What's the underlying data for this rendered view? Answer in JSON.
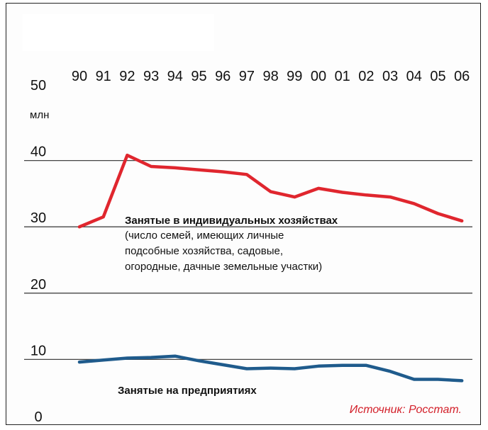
{
  "chart_data": {
    "type": "line",
    "categories": [
      "90",
      "91",
      "92",
      "93",
      "94",
      "95",
      "96",
      "97",
      "98",
      "99",
      "00",
      "01",
      "02",
      "03",
      "04",
      "05",
      "06"
    ],
    "ylim": [
      0,
      50
    ],
    "yticks": [
      "0",
      "10",
      "20",
      "30",
      "40",
      "50"
    ],
    "unit_label": "млн",
    "grid": true,
    "series": [
      {
        "name": "Занятые в индивидуальных хозяйствах",
        "color": "#e0262e",
        "values": [
          30,
          31.5,
          40.8,
          39.1,
          38.9,
          38.6,
          38.3,
          37.9,
          35.3,
          34.5,
          35.8,
          35.2,
          34.8,
          34.5,
          33.5,
          32.0,
          30.9
        ]
      },
      {
        "name": "Занятые на предприятиях",
        "color": "#1f5b8c",
        "values": [
          9.6,
          9.9,
          10.2,
          10.3,
          10.5,
          9.8,
          9.2,
          8.6,
          8.7,
          8.6,
          9.0,
          9.1,
          9.1,
          8.2,
          7.0,
          7.0,
          6.8
        ]
      }
    ],
    "annotations": {
      "households_title": "Занятые в индивидуальных хозяйствах",
      "households_note_1": "(число семей, имеющих личные",
      "households_note_2": "подсобные хозяйства, садовые,",
      "households_note_3": "огородные, дачные земельные участки)",
      "enterprises_title": "Занятые на предприятиях"
    },
    "source": "Источник: Росстат."
  }
}
